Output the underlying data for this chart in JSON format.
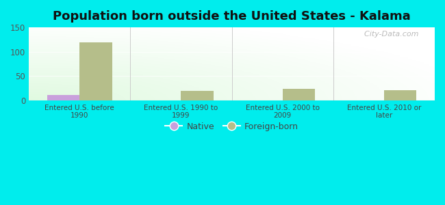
{
  "title": "Population born outside the United States - Kalama",
  "categories": [
    "Entered U.S. before\n1990",
    "Entered U.S. 1990 to\n1999",
    "Entered U.S. 2000 to\n2009",
    "Entered U.S. 2010 or\nlater"
  ],
  "native_values": [
    12,
    0,
    0,
    0
  ],
  "foreign_born_values": [
    119,
    20,
    24,
    21
  ],
  "native_color": "#c9a0dc",
  "foreign_born_color": "#b5be8a",
  "background_color": "#00eded",
  "ylim": [
    0,
    150
  ],
  "yticks": [
    0,
    50,
    100,
    150
  ],
  "bar_width": 0.32,
  "title_fontsize": 13,
  "watermark": "  City-Data.com",
  "tick_color": "#555555",
  "label_color": "#444444"
}
